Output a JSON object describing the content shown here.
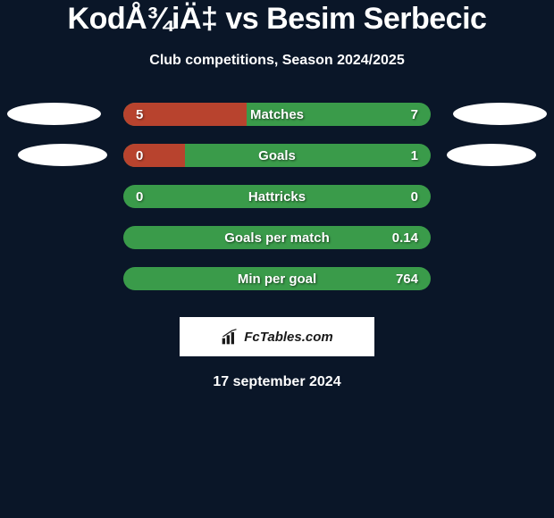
{
  "title": "KodÅ¾iÄ‡ vs Besim Serbecic",
  "subtitle": "Club competitions, Season 2024/2025",
  "date": "17 september 2024",
  "brand": "FcTables.com",
  "colors": {
    "background": "#0a1628",
    "bar_left": "#b8432e",
    "bar_right": "#3a9b4a",
    "ellipse": "#ffffff",
    "text": "#ffffff"
  },
  "stats": [
    {
      "label": "Matches",
      "left_value": "5",
      "right_value": "7",
      "left_pct": 40,
      "show_ellipses": true,
      "ellipse_style": 1
    },
    {
      "label": "Goals",
      "left_value": "0",
      "right_value": "1",
      "left_pct": 20,
      "show_ellipses": true,
      "ellipse_style": 2
    },
    {
      "label": "Hattricks",
      "left_value": "0",
      "right_value": "0",
      "left_pct": 0,
      "show_ellipses": false
    },
    {
      "label": "Goals per match",
      "left_value": "",
      "right_value": "0.14",
      "left_pct": 0,
      "show_ellipses": false
    },
    {
      "label": "Min per goal",
      "left_value": "",
      "right_value": "764",
      "left_pct": 0,
      "show_ellipses": false
    }
  ]
}
